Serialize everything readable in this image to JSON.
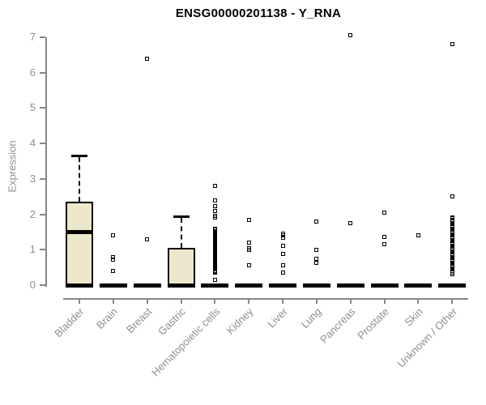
{
  "colors": {
    "box_fill": "#ede7cb",
    "box_border": "#000000",
    "axis": "#878787",
    "tick_text": "#8f8f8f",
    "title_text": "#000000"
  },
  "chart_data": {
    "type": "box",
    "title": "ENSG00000201138 - Y_RNA",
    "xlabel": "",
    "ylabel": "Expression",
    "ylim": [
      0,
      7
    ],
    "yticks": [
      "0",
      "1",
      "2",
      "3",
      "4",
      "5",
      "6",
      "7"
    ],
    "grid": "off",
    "legend": "none",
    "categories": [
      "Bladder",
      "Brain",
      "Breast",
      "Gastric",
      "Hematopoietic cells",
      "Kidney",
      "Liver",
      "Lung",
      "Pancreas",
      "Prostate",
      "Skin",
      "Unknown / Other"
    ],
    "boxes": [
      {
        "category": "Bladder",
        "whisker_low": 0,
        "q1": 0,
        "median": 1.5,
        "q3": 2.35,
        "whisker_high": 3.65,
        "outliers": []
      },
      {
        "category": "Brain",
        "whisker_low": 0,
        "q1": 0,
        "median": 0,
        "q3": 0,
        "whisker_high": 0,
        "outliers": [
          1.4,
          0.78,
          0.72,
          0.4
        ]
      },
      {
        "category": "Breast",
        "whisker_low": 0,
        "q1": 0,
        "median": 0,
        "q3": 0,
        "whisker_high": 0,
        "outliers": [
          6.4,
          1.3
        ]
      },
      {
        "category": "Gastric",
        "whisker_low": 0,
        "q1": 0,
        "median": 0,
        "q3": 1.05,
        "whisker_high": 1.95,
        "outliers": []
      },
      {
        "category": "Hematopoietic cells",
        "whisker_low": 0,
        "q1": 0,
        "median": 0,
        "q3": 0,
        "whisker_high": 0,
        "outliers": [
          2.8,
          2.4,
          2.22,
          2.1,
          1.95,
          1.9,
          1.6,
          1.56,
          1.53,
          1.49,
          1.46,
          1.42,
          1.39,
          1.35,
          1.32,
          1.28,
          1.25,
          1.21,
          1.18,
          1.14,
          1.11,
          1.07,
          1.04,
          1.0,
          0.97,
          0.93,
          0.9,
          0.86,
          0.83,
          0.79,
          0.76,
          0.72,
          0.69,
          0.65,
          0.62,
          0.58,
          0.55,
          0.51,
          0.48,
          0.44,
          0.41,
          0.38,
          0.35,
          0.15
        ]
      },
      {
        "category": "Kidney",
        "whisker_low": 0,
        "q1": 0,
        "median": 0,
        "q3": 0,
        "whisker_high": 0,
        "outliers": [
          1.85,
          1.2,
          1.05,
          1.0,
          0.55
        ]
      },
      {
        "category": "Liver",
        "whisker_low": 0,
        "q1": 0,
        "median": 0,
        "q3": 0,
        "whisker_high": 0,
        "outliers": [
          1.45,
          1.4,
          1.33,
          1.12,
          0.88,
          0.55,
          0.35
        ]
      },
      {
        "category": "Lung",
        "whisker_low": 0,
        "q1": 0,
        "median": 0,
        "q3": 0,
        "whisker_high": 0,
        "outliers": [
          1.8,
          1.0,
          0.75,
          0.62
        ]
      },
      {
        "category": "Pancreas",
        "whisker_low": 0,
        "q1": 0,
        "median": 0,
        "q3": 0,
        "whisker_high": 0,
        "outliers": [
          7.05,
          1.75
        ]
      },
      {
        "category": "Prostate",
        "whisker_low": 0,
        "q1": 0,
        "median": 0,
        "q3": 0,
        "whisker_high": 0,
        "outliers": [
          2.05,
          1.35,
          1.15
        ]
      },
      {
        "category": "Skin",
        "whisker_low": 0,
        "q1": 0,
        "median": 0,
        "q3": 0,
        "whisker_high": 0,
        "outliers": [
          1.4
        ]
      },
      {
        "category": "Unknown / Other",
        "whisker_low": 0,
        "q1": 0,
        "median": 0,
        "q3": 0,
        "whisker_high": 0,
        "outliers": [
          6.8,
          2.5,
          1.92,
          1.88,
          1.84,
          1.8,
          1.76,
          1.72,
          1.68,
          1.64,
          1.6,
          1.56,
          1.52,
          1.48,
          1.44,
          1.4,
          1.36,
          1.32,
          1.28,
          1.24,
          1.2,
          1.16,
          1.12,
          1.08,
          1.04,
          1.0,
          0.96,
          0.92,
          0.88,
          0.84,
          0.8,
          0.76,
          0.72,
          0.68,
          0.64,
          0.6,
          0.56,
          0.52,
          0.48,
          0.44,
          0.4,
          0.36,
          0.32
        ]
      }
    ]
  }
}
